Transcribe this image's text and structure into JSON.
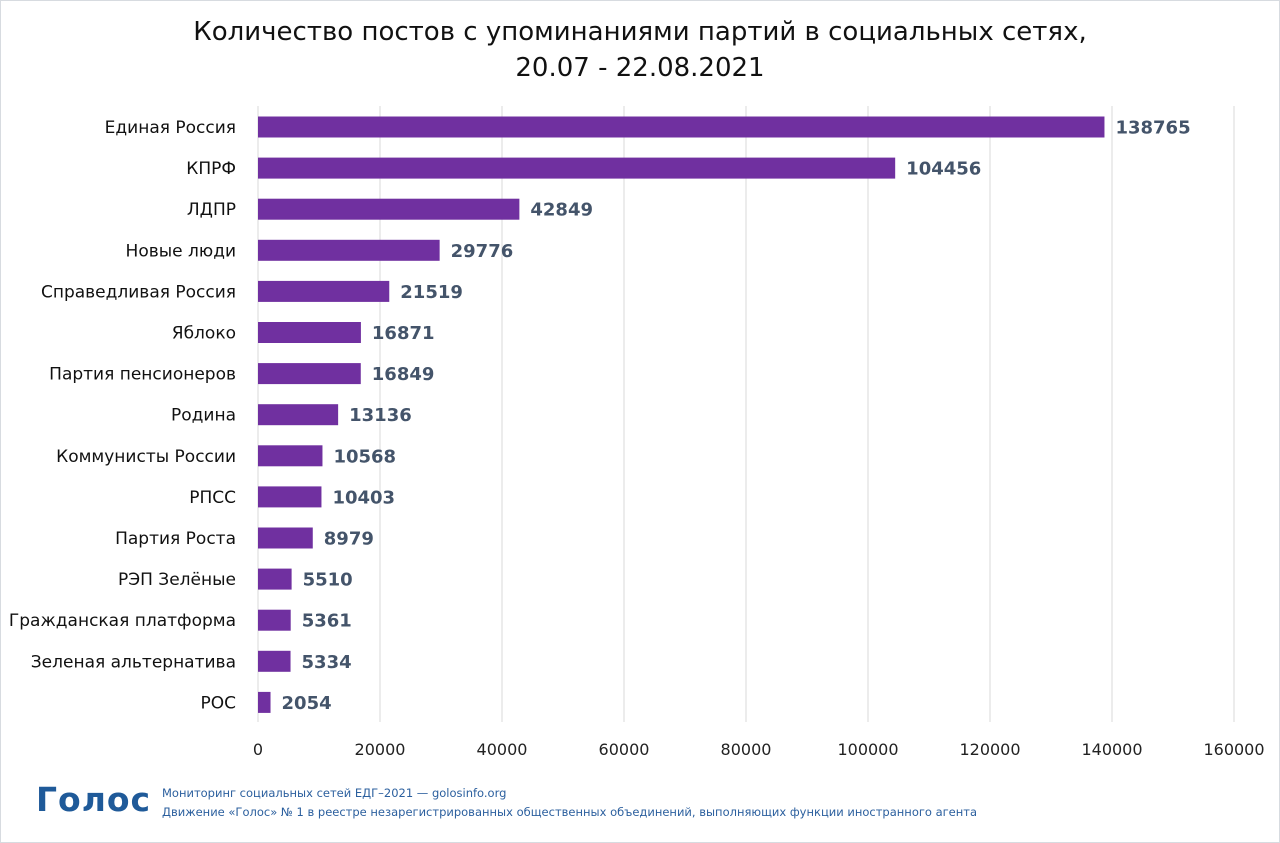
{
  "chart_data": {
    "type": "bar",
    "orientation": "horizontal",
    "title": "Количество постов с упоминаниями партий в социальных сетях,",
    "subtitle": "20.07 - 22.08.2021",
    "categories": [
      "Единая Россия",
      "КПРФ",
      "ЛДПР",
      "Новые люди",
      "Справедливая Россия",
      "Яблоко",
      "Партия пенсионеров",
      "Родина",
      "Коммунисты России",
      "РПСС",
      "Партия Роста",
      "РЭП Зелёные",
      "Гражданская платформа",
      "Зеленая альтернатива",
      "РОС"
    ],
    "values": [
      138765,
      104456,
      42849,
      29776,
      21519,
      16871,
      16849,
      13136,
      10568,
      10403,
      8979,
      5510,
      5361,
      5334,
      2054
    ],
    "value_labels": [
      "138765",
      "104456",
      "42849",
      "29776",
      "21519",
      "16871",
      "16849",
      "13136",
      "10568",
      "10403",
      "8979",
      "5510",
      "5361",
      "5334",
      "2054"
    ],
    "xlim": [
      0,
      160000
    ],
    "xticks": [
      0,
      20000,
      40000,
      60000,
      80000,
      100000,
      120000,
      140000,
      160000
    ],
    "xtick_labels": [
      "0",
      "20000",
      "40000",
      "60000",
      "80000",
      "100000",
      "120000",
      "140000",
      "160000"
    ],
    "grid": "vertical",
    "legend": "none",
    "bar_color": "#7030a0",
    "value_label_color": "#44546a"
  },
  "footer": {
    "logo_text": "Голос",
    "line1": "Мониторинг социальных сетей ЕДГ–2021 — golosinfo.org",
    "line2": "Движение «Голос» № 1 в реестре незарегистрированных общественных объединений, выполняющих функции иностранного агента",
    "text_color": "#2b5f9e",
    "logo_color": "#1f5a99"
  }
}
